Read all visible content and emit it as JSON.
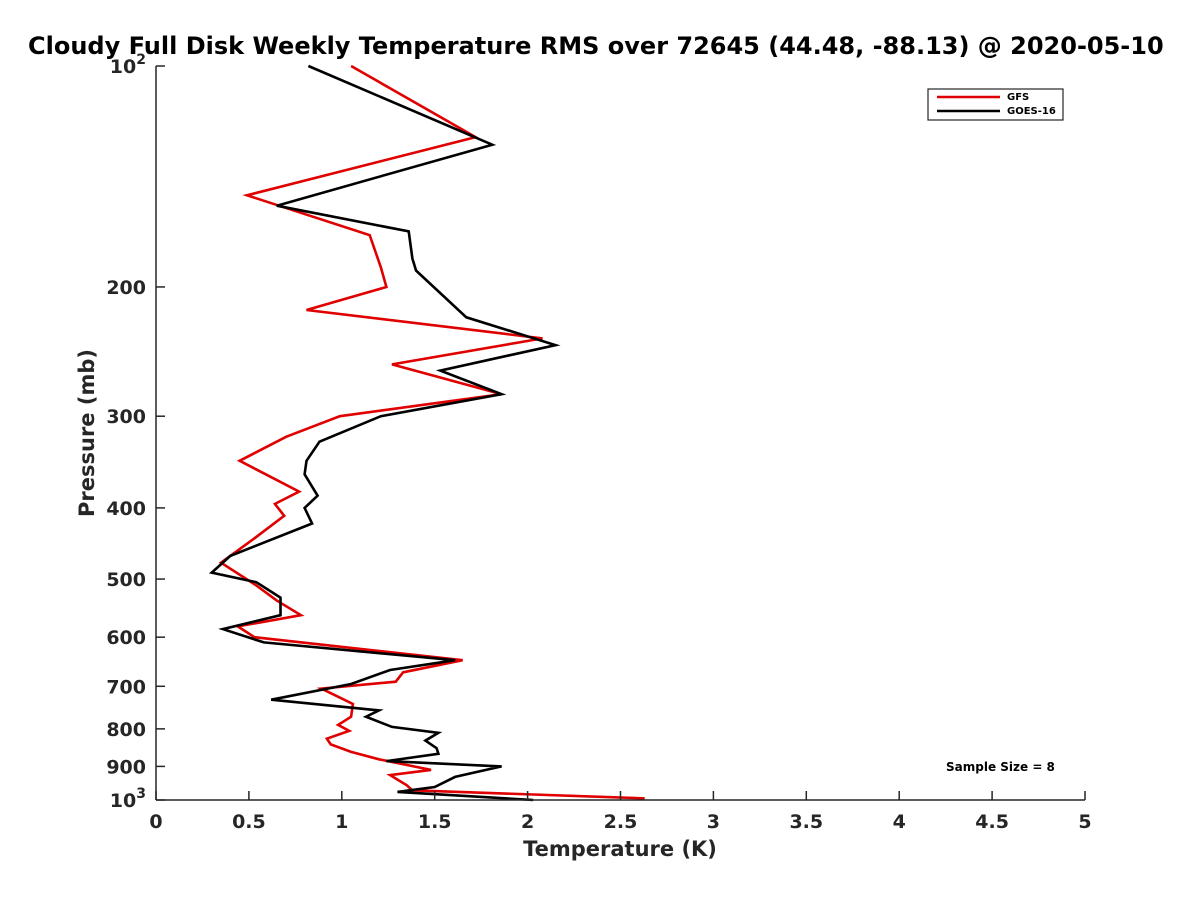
{
  "chart_data": {
    "type": "line",
    "title": "Cloudy Full Disk Weekly Temperature RMS over 72645 (44.48, -88.13) @ 2020-05-10",
    "xlabel": "Temperature (K)",
    "ylabel": "Pressure (mb)",
    "xlim": [
      0,
      5
    ],
    "ylim": [
      100,
      1000
    ],
    "y_scale": "log",
    "y_reversed": true,
    "x_ticks": [
      "0",
      "0.5",
      "1",
      "1.5",
      "2",
      "2.5",
      "3",
      "3.5",
      "4",
      "4.5",
      "5"
    ],
    "y_ticks": [
      {
        "value": 100,
        "base": "10",
        "exp": "2"
      },
      {
        "value": 200,
        "label": "200"
      },
      {
        "value": 300,
        "label": "300"
      },
      {
        "value": 400,
        "label": "400"
      },
      {
        "value": 500,
        "label": "500"
      },
      {
        "value": 600,
        "label": "600"
      },
      {
        "value": 700,
        "label": "700"
      },
      {
        "value": 800,
        "label": "800"
      },
      {
        "value": 900,
        "label": "900"
      },
      {
        "value": 1000,
        "base": "10",
        "exp": "3"
      }
    ],
    "grid": false,
    "legend_position": "top-right",
    "annotation": "Sample Size = 8",
    "series": [
      {
        "name": "GFS",
        "color": "#e00000",
        "points": [
          [
            1.05,
            100
          ],
          [
            1.72,
            125
          ],
          [
            0.49,
            150
          ],
          [
            1.15,
            170
          ],
          [
            1.21,
            188
          ],
          [
            1.24,
            200
          ],
          [
            0.81,
            215
          ],
          [
            2.08,
            235
          ],
          [
            1.27,
            255
          ],
          [
            1.86,
            280
          ],
          [
            0.99,
            300
          ],
          [
            0.7,
            320
          ],
          [
            0.45,
            345
          ],
          [
            0.77,
            380
          ],
          [
            0.64,
            395
          ],
          [
            0.69,
            410
          ],
          [
            0.53,
            440
          ],
          [
            0.35,
            475
          ],
          [
            0.54,
            510
          ],
          [
            0.65,
            535
          ],
          [
            0.78,
            560
          ],
          [
            0.44,
            580
          ],
          [
            0.53,
            600
          ],
          [
            1.65,
            645
          ],
          [
            1.33,
            670
          ],
          [
            1.29,
            690
          ],
          [
            0.89,
            705
          ],
          [
            1.06,
            740
          ],
          [
            1.05,
            770
          ],
          [
            0.98,
            790
          ],
          [
            1.04,
            805
          ],
          [
            0.92,
            825
          ],
          [
            0.94,
            840
          ],
          [
            1.05,
            860
          ],
          [
            1.2,
            880
          ],
          [
            1.48,
            910
          ],
          [
            1.26,
            925
          ],
          [
            1.35,
            955
          ],
          [
            1.38,
            970
          ],
          [
            2.63,
            995
          ]
        ]
      },
      {
        "name": "GOES-16",
        "color": "#000000",
        "points": [
          [
            0.82,
            100
          ],
          [
            1.81,
            128
          ],
          [
            0.65,
            155
          ],
          [
            1.36,
            168
          ],
          [
            1.38,
            183
          ],
          [
            1.4,
            190
          ],
          [
            1.67,
            220
          ],
          [
            2.15,
            240
          ],
          [
            1.53,
            260
          ],
          [
            1.86,
            280
          ],
          [
            1.21,
            300
          ],
          [
            0.88,
            325
          ],
          [
            0.81,
            345
          ],
          [
            0.8,
            360
          ],
          [
            0.87,
            385
          ],
          [
            0.8,
            400
          ],
          [
            0.84,
            420
          ],
          [
            0.4,
            465
          ],
          [
            0.3,
            490
          ],
          [
            0.54,
            505
          ],
          [
            0.67,
            530
          ],
          [
            0.67,
            560
          ],
          [
            0.36,
            585
          ],
          [
            0.58,
            610
          ],
          [
            1.61,
            645
          ],
          [
            1.26,
            665
          ],
          [
            1.05,
            695
          ],
          [
            0.62,
            730
          ],
          [
            1.2,
            755
          ],
          [
            1.13,
            770
          ],
          [
            1.27,
            795
          ],
          [
            1.52,
            810
          ],
          [
            1.45,
            830
          ],
          [
            1.51,
            850
          ],
          [
            1.52,
            865
          ],
          [
            1.24,
            885
          ],
          [
            1.86,
            900
          ],
          [
            1.61,
            930
          ],
          [
            1.5,
            960
          ],
          [
            1.3,
            975
          ],
          [
            2.03,
            1000
          ]
        ]
      }
    ]
  }
}
